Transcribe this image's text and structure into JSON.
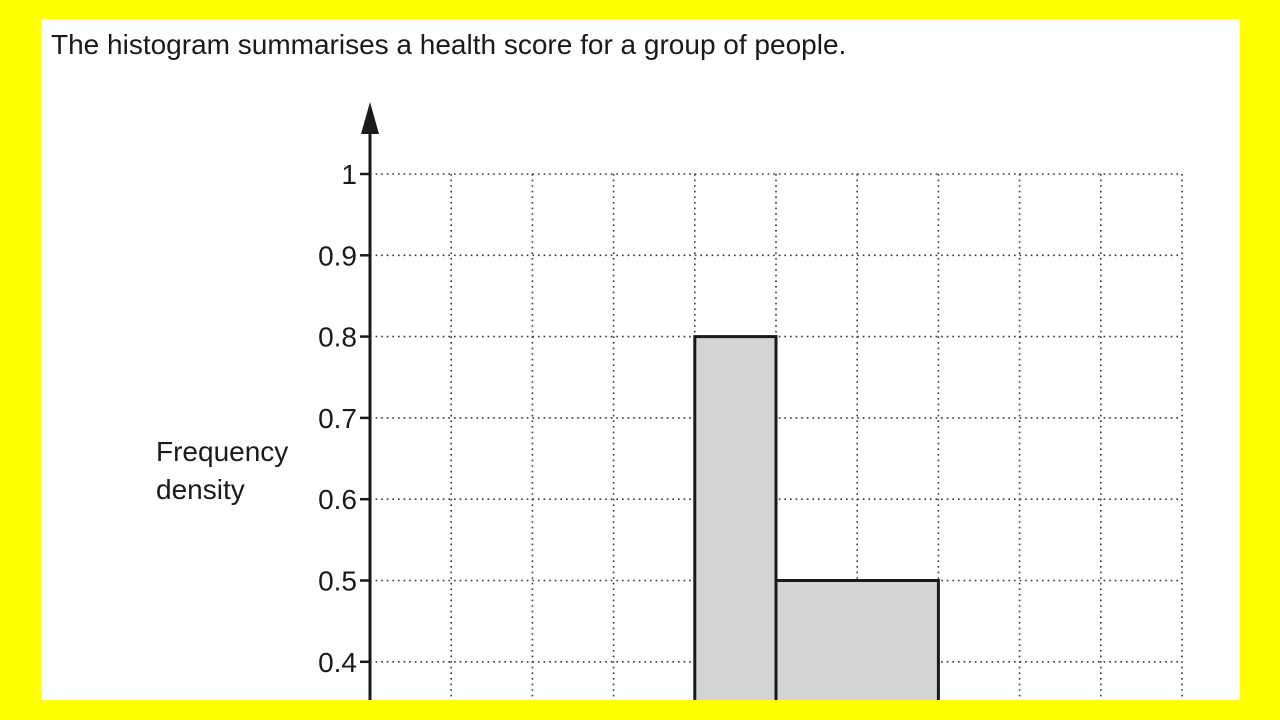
{
  "question": "The histogram summarises a health score for a group of people.",
  "colors": {
    "frame": "#ffff00",
    "bar_fill": "#d4d4d6",
    "bar_stroke": "#1a1a1a",
    "grid": "#333333"
  },
  "chart_data": {
    "type": "bar",
    "ylabel_lines": [
      "Frequency",
      "density"
    ],
    "ylim": [
      0.35,
      1.0
    ],
    "y_ticks": [
      {
        "value": 1.0,
        "label": "1"
      },
      {
        "value": 0.9,
        "label": "0.9"
      },
      {
        "value": 0.8,
        "label": "0.8"
      },
      {
        "value": 0.7,
        "label": "0.7"
      },
      {
        "value": 0.6,
        "label": "0.6"
      },
      {
        "value": 0.5,
        "label": "0.5"
      },
      {
        "value": 0.4,
        "label": "0.4"
      }
    ],
    "grid": true,
    "grid_style": "dotted",
    "grid_columns": 10,
    "bars": [
      {
        "x_start": 4,
        "x_end": 5,
        "frequency_density": 0.8
      },
      {
        "x_start": 5,
        "x_end": 7,
        "frequency_density": 0.5
      }
    ]
  }
}
